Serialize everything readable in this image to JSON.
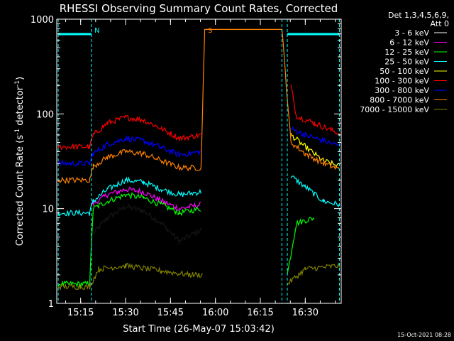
{
  "chart_data": {
    "type": "line",
    "title": "RHESSI Observing Summary Count Rates, Corrected",
    "ylabel_parts": {
      "pre": "Corrected Count Rate (s",
      "sup1": "-1",
      "mid": " detector",
      "sup2": "-1",
      "post": ")"
    },
    "xlabel": "Start Time (26-May-07 15:03:42)",
    "y_scale": "log",
    "ylim": [
      1,
      1000
    ],
    "xlim_minutes": [
      15.117,
      16.7
    ],
    "x_ticks": [
      "15:15",
      "15:30",
      "15:45",
      "16:00",
      "16:15",
      "16:30"
    ],
    "y_ticks": [
      "1",
      "10",
      "100",
      "1000"
    ],
    "legend_header": [
      "Det 1,3,4,5,6,9,",
      "Att 0"
    ],
    "legend_position": "top-right",
    "timestamp": "15-Oct-2021 08:28",
    "markers": [
      {
        "letter": "N",
        "time": 15.31,
        "color": "#00ffff"
      },
      {
        "letter": "S",
        "time": 15.94,
        "color": "#ff8000"
      }
    ],
    "gaps": [
      [
        15.95,
        16.38
      ]
    ],
    "series": [
      {
        "name": "3 - 6 keV",
        "color": "#000000",
        "points": [
          [
            15.125,
            null
          ],
          [
            15.3,
            null
          ],
          [
            15.32,
            5.5
          ],
          [
            15.4,
            8
          ],
          [
            15.5,
            10.5
          ],
          [
            15.6,
            9.5
          ],
          [
            15.7,
            7
          ],
          [
            15.8,
            4.5
          ],
          [
            15.92,
            6
          ],
          [
            16.4,
            null
          ]
        ]
      },
      {
        "name": "6 - 12 keV",
        "color": "#ff00ff",
        "points": [
          [
            15.125,
            null
          ],
          [
            15.31,
            11
          ],
          [
            15.4,
            14
          ],
          [
            15.5,
            16
          ],
          [
            15.6,
            15
          ],
          [
            15.7,
            12
          ],
          [
            15.8,
            10
          ],
          [
            15.92,
            11
          ]
        ]
      },
      {
        "name": "12 - 25 keV",
        "color": "#00ff00",
        "points": [
          [
            15.125,
            1.6
          ],
          [
            15.3,
            1.6
          ],
          [
            15.32,
            10
          ],
          [
            15.4,
            12
          ],
          [
            15.5,
            14
          ],
          [
            15.6,
            13
          ],
          [
            15.7,
            11
          ],
          [
            15.8,
            9
          ],
          [
            15.92,
            10
          ],
          [
            16.4,
            2
          ],
          [
            16.45,
            7
          ],
          [
            16.55,
            8
          ]
        ]
      },
      {
        "name": "25 - 50 keV",
        "color": "#00ffff",
        "points": [
          [
            15.125,
            9
          ],
          [
            15.3,
            9
          ],
          [
            15.32,
            12
          ],
          [
            15.4,
            16
          ],
          [
            15.5,
            20
          ],
          [
            15.6,
            19
          ],
          [
            15.7,
            16
          ],
          [
            15.8,
            14
          ],
          [
            15.92,
            15
          ],
          [
            16.42,
            22
          ],
          [
            16.5,
            17
          ],
          [
            16.6,
            12
          ],
          [
            16.69,
            11
          ]
        ]
      },
      {
        "name": "50 - 100 keV",
        "color": "#ffff00",
        "points": [
          [
            16.42,
            60
          ],
          [
            16.5,
            45
          ],
          [
            16.6,
            32
          ],
          [
            16.69,
            28
          ]
        ]
      },
      {
        "name": "100 - 300 keV",
        "color": "#ff0000",
        "points": [
          [
            15.125,
            45
          ],
          [
            15.3,
            45
          ],
          [
            15.32,
            60
          ],
          [
            15.4,
            80
          ],
          [
            15.5,
            92
          ],
          [
            15.6,
            86
          ],
          [
            15.7,
            70
          ],
          [
            15.8,
            55
          ],
          [
            15.92,
            60
          ],
          [
            16.42,
            200
          ],
          [
            16.45,
            95
          ],
          [
            16.55,
            80
          ],
          [
            16.69,
            62
          ]
        ]
      },
      {
        "name": "300 - 800 keV",
        "color": "#0000ff",
        "points": [
          [
            15.125,
            30
          ],
          [
            15.3,
            30
          ],
          [
            15.32,
            38
          ],
          [
            15.4,
            48
          ],
          [
            15.5,
            55
          ],
          [
            15.6,
            52
          ],
          [
            15.7,
            44
          ],
          [
            15.8,
            37
          ],
          [
            15.92,
            40
          ],
          [
            16.42,
            70
          ],
          [
            16.5,
            60
          ],
          [
            16.6,
            52
          ],
          [
            16.69,
            46
          ]
        ]
      },
      {
        "name": "800 - 7000 keV",
        "color": "#ff8000",
        "points": [
          [
            15.125,
            20
          ],
          [
            15.3,
            20
          ],
          [
            15.32,
            28
          ],
          [
            15.4,
            35
          ],
          [
            15.5,
            40
          ],
          [
            15.6,
            38
          ],
          [
            15.7,
            32
          ],
          [
            15.8,
            27
          ],
          [
            15.92,
            27
          ],
          [
            15.94,
            780
          ],
          [
            16.37,
            780
          ],
          [
            16.42,
            50
          ],
          [
            16.5,
            38
          ],
          [
            16.6,
            30
          ],
          [
            16.69,
            26
          ]
        ]
      },
      {
        "name": "7000 - 15000 keV",
        "color": "#808000",
        "points": [
          [
            15.125,
            1.5
          ],
          [
            15.3,
            1.5
          ],
          [
            15.35,
            2.3
          ],
          [
            15.5,
            2.5
          ],
          [
            15.7,
            2.2
          ],
          [
            15.85,
            2
          ],
          [
            15.93,
            2
          ],
          [
            16.4,
            1.6
          ],
          [
            16.5,
            2.3
          ],
          [
            16.69,
            2.5
          ]
        ]
      }
    ]
  }
}
